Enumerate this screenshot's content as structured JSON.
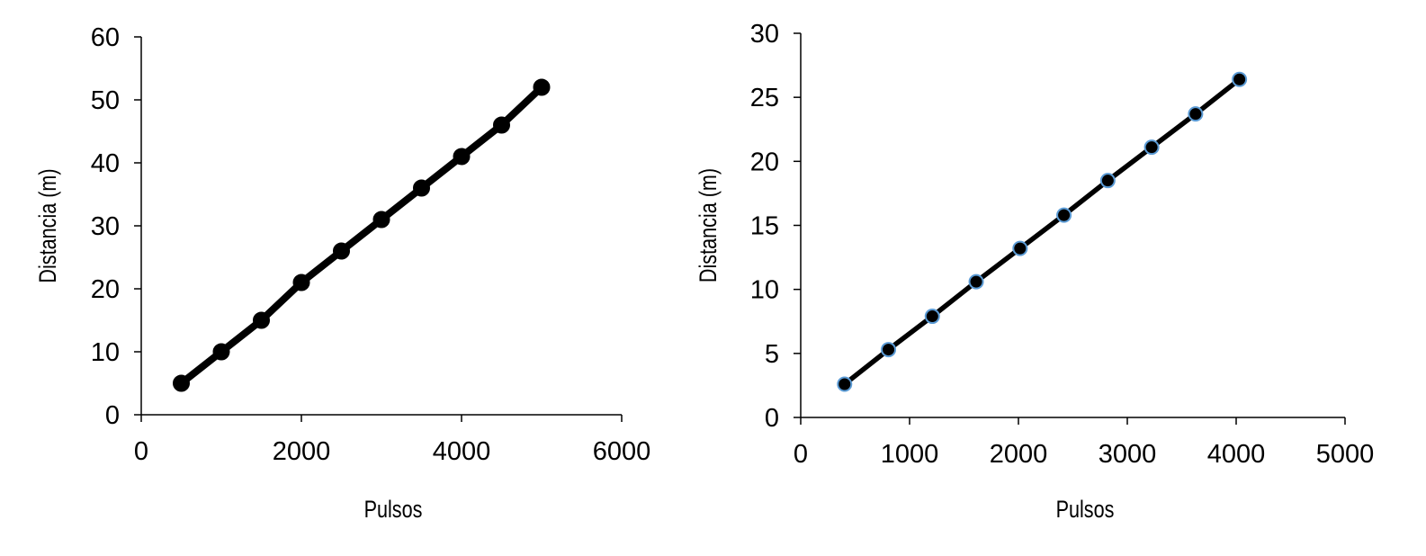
{
  "colors": {
    "line": "#000000",
    "marker_fill": "#000000",
    "marker_edge_left": "#000000",
    "marker_edge_right": "#5b9bd5"
  },
  "chart_data": [
    {
      "type": "line",
      "title": "",
      "xlabel": "Pulsos",
      "ylabel": "Distancia (m)",
      "xlim": [
        0,
        6000
      ],
      "ylim": [
        0,
        60
      ],
      "xticks": [
        "0",
        "2000",
        "4000",
        "6000"
      ],
      "yticks": [
        "0",
        "10",
        "20",
        "30",
        "40",
        "50",
        "60"
      ],
      "grid": false,
      "legend": "none",
      "series": [
        {
          "x": [
            500,
            1000,
            1500,
            2000,
            2500,
            3000,
            3500,
            4000,
            4500,
            5000
          ],
          "y": [
            5,
            10,
            15,
            21,
            26,
            31,
            36,
            41,
            46,
            52
          ]
        }
      ]
    },
    {
      "type": "line",
      "title": "",
      "xlabel": "Pulsos",
      "ylabel": "Distancia (m)",
      "xlim": [
        0,
        5000
      ],
      "ylim": [
        0,
        30
      ],
      "xticks": [
        "0",
        "1000",
        "2000",
        "3000",
        "4000",
        "5000"
      ],
      "yticks": [
        "0",
        "5",
        "10",
        "15",
        "20",
        "25",
        "30"
      ],
      "grid": false,
      "legend": "none",
      "series": [
        {
          "x": [
            403,
            806,
            1209,
            1612,
            2015,
            2418,
            2821,
            3224,
            3627,
            4030
          ],
          "y": [
            2.6,
            5.3,
            7.9,
            10.6,
            13.2,
            15.8,
            18.5,
            21.1,
            23.7,
            26.4
          ]
        }
      ]
    }
  ]
}
